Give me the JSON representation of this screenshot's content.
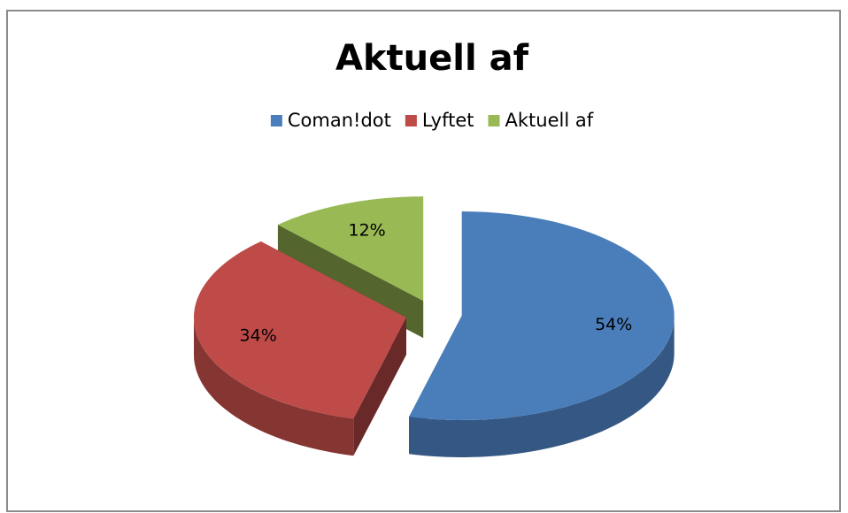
{
  "chart_data": {
    "type": "pie",
    "title": "Aktuell af",
    "categories": [
      "Coman!dot",
      "Lyftet",
      "Aktuell af"
    ],
    "values": [
      54,
      34,
      12
    ],
    "value_labels": [
      "54%",
      "34%",
      "12%"
    ],
    "colors": [
      "#4a7ebb",
      "#be4b48",
      "#98b954"
    ],
    "legend": "top"
  }
}
